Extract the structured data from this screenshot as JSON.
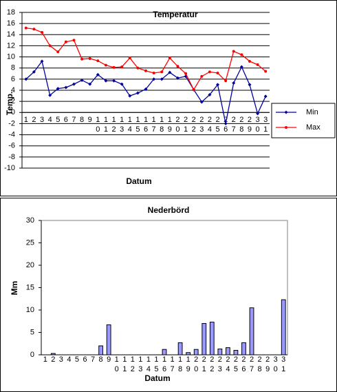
{
  "chart_data": [
    {
      "type": "line",
      "title": "Temperatur",
      "x_label": "Datum",
      "y_label": "Temp.",
      "categories": [
        "1",
        "2",
        "3",
        "4",
        "5",
        "6",
        "7",
        "8",
        "9",
        "10",
        "11",
        "12",
        "13",
        "14",
        "15",
        "16",
        "17",
        "18",
        "19",
        "20",
        "21",
        "22",
        "23",
        "24",
        "25",
        "26",
        "27",
        "28",
        "29",
        "30",
        "31"
      ],
      "series": [
        {
          "name": "Min",
          "color": "#0000a0",
          "marker": "diamond",
          "values": [
            6,
            7.3,
            9.2,
            3.1,
            4.3,
            4.5,
            5.1,
            5.8,
            5.1,
            6.8,
            5.7,
            5.7,
            5.1,
            3,
            3.5,
            4.2,
            6,
            6,
            7.2,
            6.2,
            6.5,
            4.1,
            1.9,
            3.2,
            5,
            -2,
            5.3,
            8.2,
            5,
            -0.2,
            2.9
          ]
        },
        {
          "name": "Max",
          "color": "#ff0000",
          "marker": "circle",
          "values": [
            15.2,
            15,
            14.4,
            12,
            10.9,
            12.7,
            13,
            9.6,
            9.7,
            9.3,
            8.5,
            8.1,
            8.2,
            9.8,
            8,
            7.5,
            7.1,
            7.3,
            9.8,
            8.3,
            7,
            4.1,
            6.5,
            7.3,
            7.1,
            5.7,
            11,
            10.4,
            9.2,
            8.6,
            7.4
          ]
        }
      ],
      "ylim": [
        -10,
        18
      ],
      "yticks": [
        -10,
        -8,
        -6,
        -4,
        -2,
        0,
        2,
        4,
        6,
        8,
        10,
        12,
        14,
        16,
        18
      ],
      "grid": true,
      "legend": "right"
    },
    {
      "type": "bar",
      "title": "Nederbörd",
      "x_label": "Datum",
      "y_label": "Mm",
      "categories": [
        "1",
        "2",
        "3",
        "4",
        "5",
        "6",
        "7",
        "8",
        "9",
        "10",
        "11",
        "12",
        "13",
        "14",
        "15",
        "16",
        "17",
        "18",
        "19",
        "20",
        "21",
        "22",
        "23",
        "24",
        "25",
        "26",
        "27",
        "28",
        "29",
        "30",
        "31"
      ],
      "values": [
        0,
        0.3,
        0,
        0,
        0,
        0,
        0,
        2,
        6.7,
        0,
        0,
        0,
        0,
        0,
        0,
        1.2,
        0,
        2.7,
        0.5,
        1.2,
        7,
        7.3,
        1.3,
        1.6,
        1,
        2.7,
        10.5,
        0,
        0,
        0,
        12.3
      ],
      "color": "#9999ff",
      "ylim": [
        0,
        30
      ],
      "yticks": [
        0,
        5,
        10,
        15,
        20,
        25,
        30
      ],
      "grid": false
    }
  ]
}
